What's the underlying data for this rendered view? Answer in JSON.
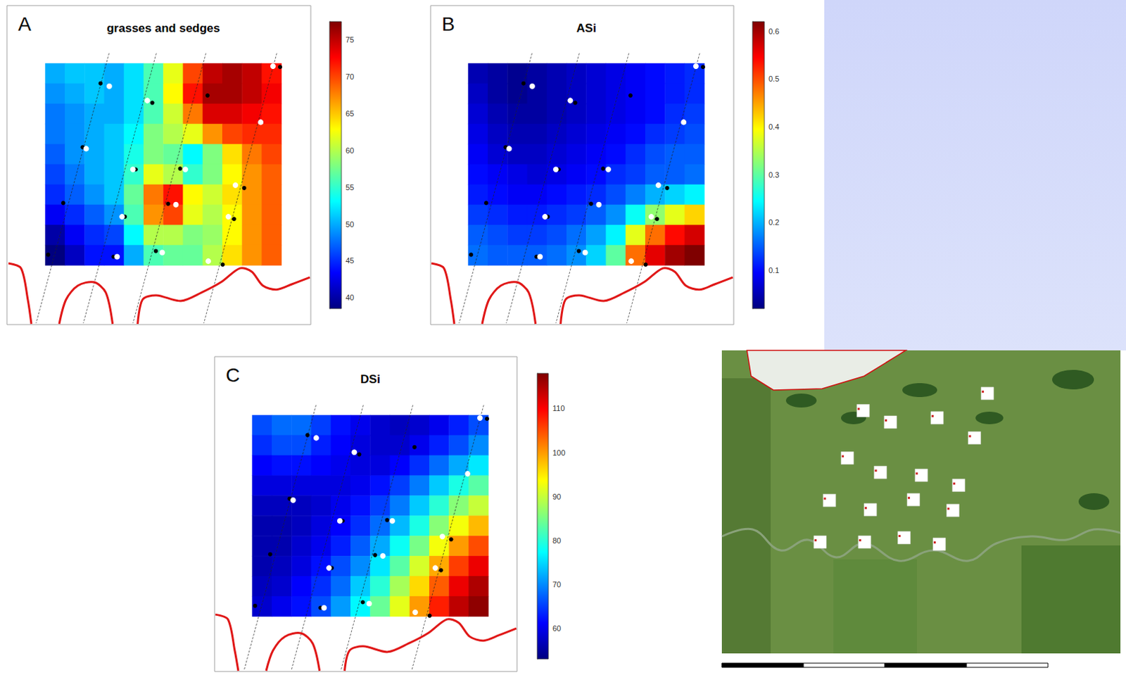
{
  "chart_data": [
    {
      "type": "heatmap",
      "panel": "A",
      "title": "grasses and sedges",
      "tick_labels": false,
      "cells": [
        [
          50,
          51,
          51,
          50,
          52,
          56,
          62,
          70,
          75,
          76,
          75,
          72
        ],
        [
          49,
          50,
          51,
          50,
          52,
          56,
          63,
          72,
          76,
          76,
          75,
          73
        ],
        [
          48,
          49,
          50,
          50,
          52,
          56,
          61,
          68,
          74,
          74,
          73,
          72
        ],
        [
          48,
          49,
          50,
          51,
          53,
          58,
          60,
          62,
          67,
          70,
          71,
          71
        ],
        [
          47,
          49,
          50,
          51,
          54,
          58,
          57,
          53,
          58,
          64,
          68,
          70
        ],
        [
          46,
          48,
          50,
          51,
          55,
          62,
          60,
          55,
          58,
          63,
          67,
          69
        ],
        [
          45,
          47,
          49,
          51,
          57,
          68,
          72,
          63,
          61,
          64,
          67,
          69
        ],
        [
          43,
          45,
          47,
          49,
          56,
          67,
          70,
          62,
          60,
          63,
          67,
          69
        ],
        [
          40,
          43,
          45,
          46,
          53,
          60,
          60,
          58,
          59,
          63,
          67,
          69
        ],
        [
          38,
          41,
          44,
          44,
          50,
          56,
          57,
          57,
          60,
          64,
          67,
          69
        ]
      ],
      "colorbar": {
        "range": [
          38.5,
          77.5
        ],
        "ticks": [
          40,
          45,
          50,
          55,
          60,
          65,
          70,
          75
        ]
      },
      "points": [
        {
          "marker": "filled",
          "values": [
            [
              0.234,
              0.099
            ],
            [
              0.453,
              0.195
            ],
            [
              0.158,
              0.415
            ],
            [
              0.383,
              0.525
            ],
            [
              0.076,
              0.691
            ],
            [
              0.337,
              0.759
            ],
            [
              0.52,
              0.695
            ],
            [
              0.571,
              0.521
            ],
            [
              0.687,
              0.159
            ],
            [
              0.915,
              0.291
            ],
            [
              0.842,
              0.617
            ],
            [
              0.799,
              0.77
            ],
            [
              0.468,
              0.929
            ],
            [
              0.289,
              0.957
            ],
            [
              0.012,
              0.947
            ],
            [
              0.994,
              0.018
            ],
            [
              0.751,
              0.996
            ]
          ]
        },
        {
          "marker": "open",
          "values": [
            [
              0.271,
              0.113
            ],
            [
              0.432,
              0.184
            ],
            [
              0.173,
              0.422
            ],
            [
              0.371,
              0.525
            ],
            [
              0.593,
              0.525
            ],
            [
              0.553,
              0.699
            ],
            [
              0.325,
              0.759
            ],
            [
              0.495,
              0.936
            ],
            [
              0.304,
              0.957
            ],
            [
              0.912,
              0.291
            ],
            [
              0.805,
              0.603
            ],
            [
              0.775,
              0.759
            ],
            [
              0.69,
              0.979
            ],
            [
              0.964,
              0.014
            ]
          ]
        }
      ]
    },
    {
      "type": "heatmap",
      "panel": "B",
      "title": "ASi",
      "tick_labels": false,
      "cells": [
        [
          0.05,
          0.04,
          0.03,
          0.04,
          0.05,
          0.06,
          0.07,
          0.08,
          0.09,
          0.1,
          0.11,
          0.12
        ],
        [
          0.06,
          0.04,
          0.03,
          0.04,
          0.05,
          0.06,
          0.07,
          0.08,
          0.09,
          0.1,
          0.11,
          0.12
        ],
        [
          0.07,
          0.05,
          0.04,
          0.04,
          0.05,
          0.06,
          0.07,
          0.08,
          0.09,
          0.1,
          0.12,
          0.13
        ],
        [
          0.08,
          0.06,
          0.05,
          0.05,
          0.06,
          0.07,
          0.08,
          0.09,
          0.1,
          0.12,
          0.13,
          0.14
        ],
        [
          0.09,
          0.07,
          0.06,
          0.06,
          0.07,
          0.08,
          0.09,
          0.1,
          0.12,
          0.14,
          0.15,
          0.15
        ],
        [
          0.1,
          0.09,
          0.08,
          0.07,
          0.08,
          0.09,
          0.1,
          0.12,
          0.13,
          0.15,
          0.15,
          0.16
        ],
        [
          0.11,
          0.1,
          0.09,
          0.09,
          0.1,
          0.11,
          0.12,
          0.14,
          0.17,
          0.2,
          0.22,
          0.24
        ],
        [
          0.13,
          0.12,
          0.11,
          0.11,
          0.12,
          0.13,
          0.15,
          0.18,
          0.25,
          0.33,
          0.38,
          0.42
        ],
        [
          0.15,
          0.14,
          0.13,
          0.13,
          0.14,
          0.16,
          0.19,
          0.24,
          0.38,
          0.48,
          0.54,
          0.57
        ],
        [
          0.16,
          0.15,
          0.15,
          0.15,
          0.16,
          0.18,
          0.22,
          0.3,
          0.48,
          0.56,
          0.6,
          0.62
        ]
      ],
      "colorbar": {
        "range": [
          0.02,
          0.62
        ],
        "ticks": [
          0.1,
          0.2,
          0.3,
          0.4,
          0.5,
          0.6
        ]
      },
      "points": [
        {
          "marker": "filled",
          "values": [
            [
              0.234,
              0.099
            ],
            [
              0.453,
              0.195
            ],
            [
              0.158,
              0.415
            ],
            [
              0.383,
              0.525
            ],
            [
              0.076,
              0.691
            ],
            [
              0.337,
              0.759
            ],
            [
              0.52,
              0.695
            ],
            [
              0.571,
              0.521
            ],
            [
              0.687,
              0.159
            ],
            [
              0.915,
              0.291
            ],
            [
              0.842,
              0.617
            ],
            [
              0.799,
              0.77
            ],
            [
              0.468,
              0.929
            ],
            [
              0.289,
              0.957
            ],
            [
              0.012,
              0.947
            ],
            [
              0.994,
              0.018
            ],
            [
              0.751,
              0.996
            ]
          ]
        },
        {
          "marker": "open",
          "values": [
            [
              0.271,
              0.113
            ],
            [
              0.432,
              0.184
            ],
            [
              0.173,
              0.422
            ],
            [
              0.371,
              0.525
            ],
            [
              0.593,
              0.525
            ],
            [
              0.553,
              0.699
            ],
            [
              0.325,
              0.759
            ],
            [
              0.495,
              0.936
            ],
            [
              0.304,
              0.957
            ],
            [
              0.912,
              0.291
            ],
            [
              0.805,
              0.603
            ],
            [
              0.775,
              0.759
            ],
            [
              0.69,
              0.979
            ],
            [
              0.964,
              0.014
            ]
          ]
        }
      ]
    },
    {
      "type": "heatmap",
      "panel": "C",
      "title": "DSi",
      "tick_labels": false,
      "cells": [
        [
          66,
          68,
          68,
          65,
          62,
          60,
          58,
          57,
          58,
          60,
          63,
          66
        ],
        [
          64,
          66,
          66,
          63,
          61,
          59,
          58,
          58,
          60,
          63,
          66,
          70
        ],
        [
          61,
          62,
          62,
          61,
          60,
          59,
          59,
          61,
          64,
          68,
          72,
          76
        ],
        [
          59,
          59,
          59,
          59,
          59,
          60,
          62,
          65,
          69,
          74,
          79,
          83
        ],
        [
          57,
          57,
          57,
          58,
          60,
          62,
          65,
          69,
          74,
          80,
          86,
          90
        ],
        [
          56,
          56,
          57,
          59,
          61,
          64,
          68,
          73,
          79,
          86,
          93,
          98
        ],
        [
          56,
          56,
          58,
          60,
          63,
          67,
          72,
          78,
          85,
          93,
          100,
          105
        ],
        [
          56,
          57,
          59,
          62,
          66,
          70,
          76,
          83,
          91,
          99,
          106,
          111
        ],
        [
          57,
          58,
          61,
          64,
          68,
          74,
          80,
          88,
          96,
          104,
          111,
          115
        ],
        [
          58,
          60,
          62,
          66,
          71,
          77,
          84,
          92,
          100,
          108,
          114,
          117
        ]
      ],
      "colorbar": {
        "range": [
          53,
          118
        ],
        "ticks": [
          60,
          70,
          80,
          90,
          100,
          110
        ]
      },
      "points": [
        {
          "marker": "filled",
          "values": [
            [
              0.234,
              0.099
            ],
            [
              0.453,
              0.195
            ],
            [
              0.158,
              0.415
            ],
            [
              0.383,
              0.525
            ],
            [
              0.076,
              0.691
            ],
            [
              0.337,
              0.759
            ],
            [
              0.52,
              0.695
            ],
            [
              0.571,
              0.521
            ],
            [
              0.687,
              0.159
            ],
            [
              0.915,
              0.291
            ],
            [
              0.842,
              0.617
            ],
            [
              0.799,
              0.77
            ],
            [
              0.468,
              0.929
            ],
            [
              0.289,
              0.957
            ],
            [
              0.012,
              0.947
            ],
            [
              0.994,
              0.018
            ],
            [
              0.751,
              0.996
            ]
          ]
        },
        {
          "marker": "open",
          "values": [
            [
              0.271,
              0.113
            ],
            [
              0.432,
              0.184
            ],
            [
              0.173,
              0.422
            ],
            [
              0.371,
              0.525
            ],
            [
              0.593,
              0.525
            ],
            [
              0.553,
              0.699
            ],
            [
              0.325,
              0.759
            ],
            [
              0.495,
              0.936
            ],
            [
              0.304,
              0.957
            ],
            [
              0.912,
              0.291
            ],
            [
              0.805,
              0.603
            ],
            [
              0.775,
              0.759
            ],
            [
              0.69,
              0.979
            ],
            [
              0.964,
              0.014
            ]
          ]
        }
      ]
    }
  ]
}
